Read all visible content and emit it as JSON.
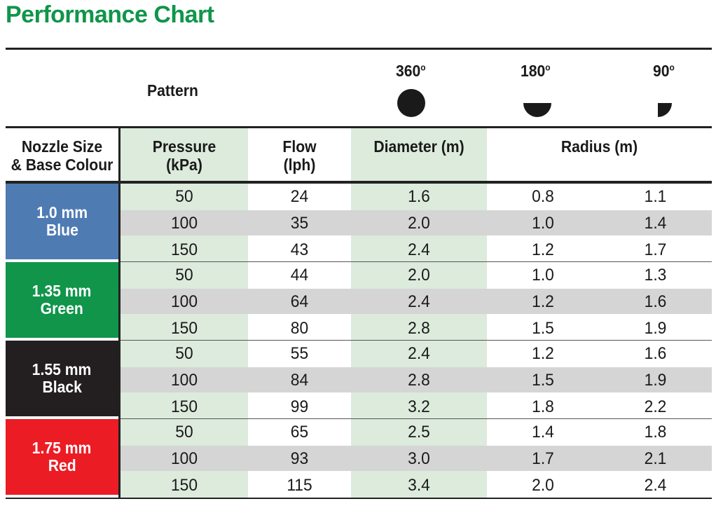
{
  "title": "Performance Chart",
  "pattern": {
    "label": "Pattern",
    "angles": [
      {
        "value": "360",
        "degree": "o"
      },
      {
        "value": "180",
        "degree": "o"
      },
      {
        "value": "90",
        "degree": "o"
      }
    ]
  },
  "headers": {
    "nozzle": [
      "Nozzle Size",
      "& Base Colour"
    ],
    "pressure": [
      "Pressure",
      "(kPa)"
    ],
    "flow": [
      "Flow",
      "(lph)"
    ],
    "diameter": "Diameter (m)",
    "radius": "Radius (m)"
  },
  "groups": [
    {
      "size": "1.0 mm",
      "colour": "Blue",
      "swatch": "#4f7bb3",
      "rows": [
        [
          "50",
          "24",
          "1.6",
          "0.8",
          "1.1"
        ],
        [
          "100",
          "35",
          "2.0",
          "1.0",
          "1.4"
        ],
        [
          "150",
          "43",
          "2.4",
          "1.2",
          "1.7"
        ]
      ]
    },
    {
      "size": "1.35 mm",
      "colour": "Green",
      "swatch": "#10954a",
      "rows": [
        [
          "50",
          "44",
          "2.0",
          "1.0",
          "1.3"
        ],
        [
          "100",
          "64",
          "2.4",
          "1.2",
          "1.6"
        ],
        [
          "150",
          "80",
          "2.8",
          "1.5",
          "1.9"
        ]
      ]
    },
    {
      "size": "1.55 mm",
      "colour": "Black",
      "swatch": "#231f20",
      "rows": [
        [
          "50",
          "55",
          "2.4",
          "1.2",
          "1.6"
        ],
        [
          "100",
          "84",
          "2.8",
          "1.5",
          "1.9"
        ],
        [
          "150",
          "99",
          "3.2",
          "1.8",
          "2.2"
        ]
      ]
    },
    {
      "size": "1.75 mm",
      "colour": "Red",
      "swatch": "#ec1c24",
      "rows": [
        [
          "50",
          "65",
          "2.5",
          "1.4",
          "1.8"
        ],
        [
          "100",
          "93",
          "3.0",
          "1.7",
          "2.1"
        ],
        [
          "150",
          "115",
          "3.4",
          "2.0",
          "2.4"
        ]
      ]
    }
  ],
  "colors": {
    "title": "#10954a",
    "shade": "#dcebdc",
    "alt_row": "#d5d5d5"
  }
}
